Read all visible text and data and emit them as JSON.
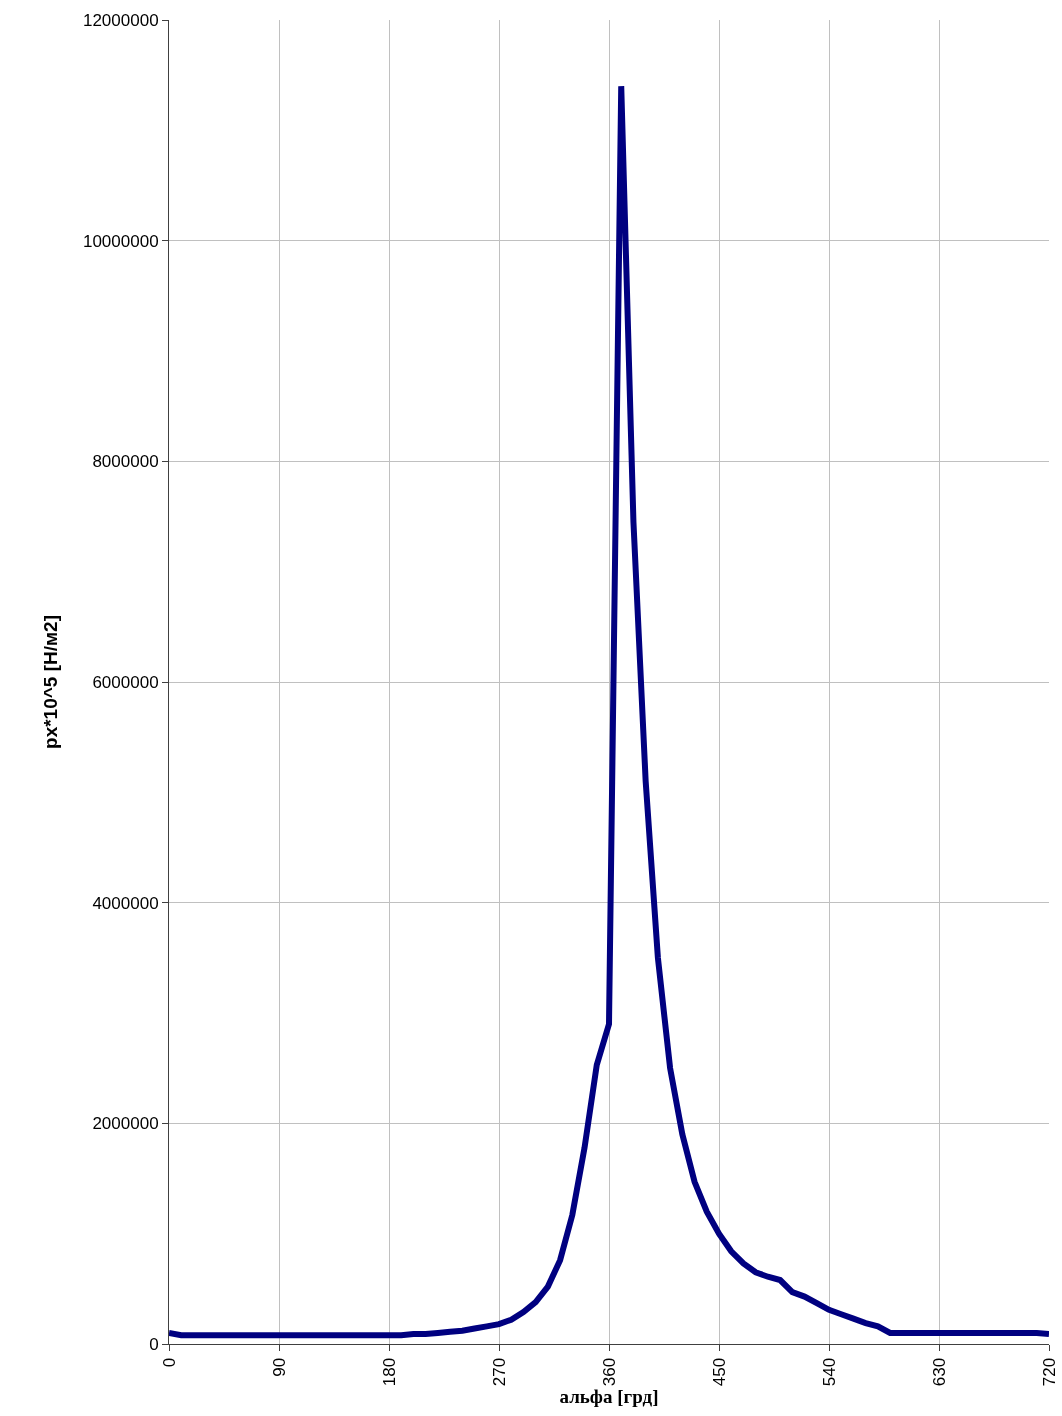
{
  "chart_data": {
    "type": "line",
    "xlabel": "альфа [грд]",
    "ylabel": "px*10^5 [Н/м2]",
    "x": [
      0,
      10,
      20,
      30,
      40,
      50,
      60,
      70,
      80,
      90,
      100,
      110,
      120,
      130,
      140,
      150,
      160,
      170,
      180,
      190,
      200,
      210,
      220,
      230,
      240,
      250,
      260,
      270,
      280,
      290,
      300,
      310,
      320,
      330,
      340,
      350,
      360,
      370,
      380,
      390,
      400,
      410,
      420,
      430,
      440,
      450,
      460,
      470,
      480,
      490,
      500,
      510,
      520,
      530,
      540,
      550,
      560,
      570,
      580,
      590,
      600,
      610,
      620,
      630,
      640,
      650,
      660,
      670,
      680,
      690,
      700,
      710,
      720
    ],
    "series": [
      {
        "color": "#000080",
        "values": [
          100000,
          80000,
          80000,
          80000,
          80000,
          80000,
          80000,
          80000,
          80000,
          80000,
          80000,
          80000,
          80000,
          80000,
          80000,
          80000,
          80000,
          80000,
          80000,
          80000,
          90000,
          90000,
          100000,
          110000,
          120000,
          140000,
          160000,
          180000,
          220000,
          290000,
          380000,
          520000,
          760000,
          1170000,
          1780000,
          2530000,
          2900000,
          11400000,
          7450000,
          5100000,
          3500000,
          2500000,
          1900000,
          1470000,
          1200000,
          1000000,
          840000,
          730000,
          650000,
          610000,
          580000,
          470000,
          430000,
          370000,
          310000,
          270000,
          230000,
          190000,
          160000,
          100000,
          100000,
          100000,
          100000,
          100000,
          100000,
          100000,
          100000,
          100000,
          100000,
          100000,
          100000,
          100000,
          90000
        ]
      }
    ],
    "xlim": [
      0,
      720
    ],
    "xticks": [
      0,
      90,
      180,
      270,
      360,
      450,
      540,
      630,
      720
    ],
    "ylim": [
      0,
      12000000
    ],
    "yticks": [
      0,
      2000000,
      4000000,
      6000000,
      8000000,
      10000000,
      12000000
    ],
    "grid": true,
    "marker": "none",
    "line_style": "solid"
  }
}
